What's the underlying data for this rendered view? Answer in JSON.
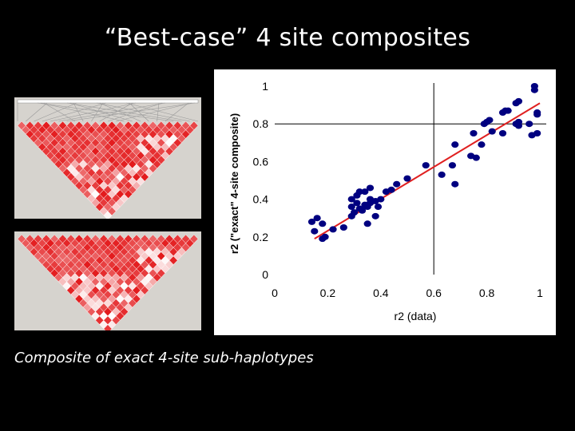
{
  "slide": {
    "title": "“Best-case” 4 site composites",
    "caption": "Composite of exact 4-site sub-haplotypes"
  },
  "ld_plots": [
    {
      "name": "ld-heatmap-data",
      "base_color": "#e31a1c",
      "light_color": "#ffffff",
      "background": "#d6d3ce"
    },
    {
      "name": "ld-heatmap-composite",
      "base_color": "#e31a1c",
      "light_color": "#ffffff",
      "background": "#d6d3ce"
    }
  ],
  "chart_data": {
    "type": "scatter",
    "xlabel": "r2 (data)",
    "ylabel": "r2 (\"exact\" 4-site composite)",
    "xlim": [
      0,
      1
    ],
    "ylim": [
      0,
      1
    ],
    "x_ticks": [
      "0",
      "0.2",
      "0.4",
      "0.6",
      "0.8",
      "1"
    ],
    "y_ticks": [
      "0",
      "0.2",
      "0.4",
      "0.6",
      "0.8",
      "1"
    ],
    "grid": false,
    "point_color": "#000080",
    "fit_line_color": "#e02020",
    "fit_line": {
      "x": [
        0.15,
        1.0
      ],
      "y": [
        0.19,
        0.91
      ]
    },
    "points": [
      [
        0.14,
        0.28
      ],
      [
        0.16,
        0.3
      ],
      [
        0.15,
        0.23
      ],
      [
        0.18,
        0.19
      ],
      [
        0.18,
        0.27
      ],
      [
        0.19,
        0.2
      ],
      [
        0.22,
        0.24
      ],
      [
        0.26,
        0.25
      ],
      [
        0.29,
        0.31
      ],
      [
        0.29,
        0.36
      ],
      [
        0.29,
        0.4
      ],
      [
        0.3,
        0.33
      ],
      [
        0.31,
        0.42
      ],
      [
        0.31,
        0.38
      ],
      [
        0.32,
        0.44
      ],
      [
        0.32,
        0.35
      ],
      [
        0.33,
        0.34
      ],
      [
        0.34,
        0.37
      ],
      [
        0.34,
        0.44
      ],
      [
        0.35,
        0.36
      ],
      [
        0.35,
        0.27
      ],
      [
        0.36,
        0.46
      ],
      [
        0.36,
        0.38
      ],
      [
        0.36,
        0.4
      ],
      [
        0.38,
        0.31
      ],
      [
        0.39,
        0.36
      ],
      [
        0.38,
        0.39
      ],
      [
        0.4,
        0.4
      ],
      [
        0.42,
        0.44
      ],
      [
        0.44,
        0.45
      ],
      [
        0.46,
        0.48
      ],
      [
        0.5,
        0.51
      ],
      [
        0.57,
        0.58
      ],
      [
        0.63,
        0.53
      ],
      [
        0.67,
        0.58
      ],
      [
        0.68,
        0.48
      ],
      [
        0.68,
        0.69
      ],
      [
        0.74,
        0.63
      ],
      [
        0.75,
        0.75
      ],
      [
        0.76,
        0.62
      ],
      [
        0.78,
        0.69
      ],
      [
        0.79,
        0.8
      ],
      [
        0.81,
        0.82
      ],
      [
        0.82,
        0.76
      ],
      [
        0.86,
        0.86
      ],
      [
        0.87,
        0.87
      ],
      [
        0.86,
        0.75
      ],
      [
        0.91,
        0.91
      ],
      [
        0.92,
        0.92
      ],
      [
        0.91,
        0.8
      ],
      [
        0.92,
        0.81
      ],
      [
        0.92,
        0.79
      ],
      [
        0.97,
        0.74
      ],
      [
        0.99,
        0.75
      ],
      [
        0.99,
        0.85
      ],
      [
        0.98,
        1.0
      ],
      [
        0.99,
        0.86
      ],
      [
        0.98,
        0.98
      ],
      [
        0.88,
        0.87
      ],
      [
        0.8,
        0.81
      ],
      [
        0.96,
        0.8
      ]
    ]
  }
}
